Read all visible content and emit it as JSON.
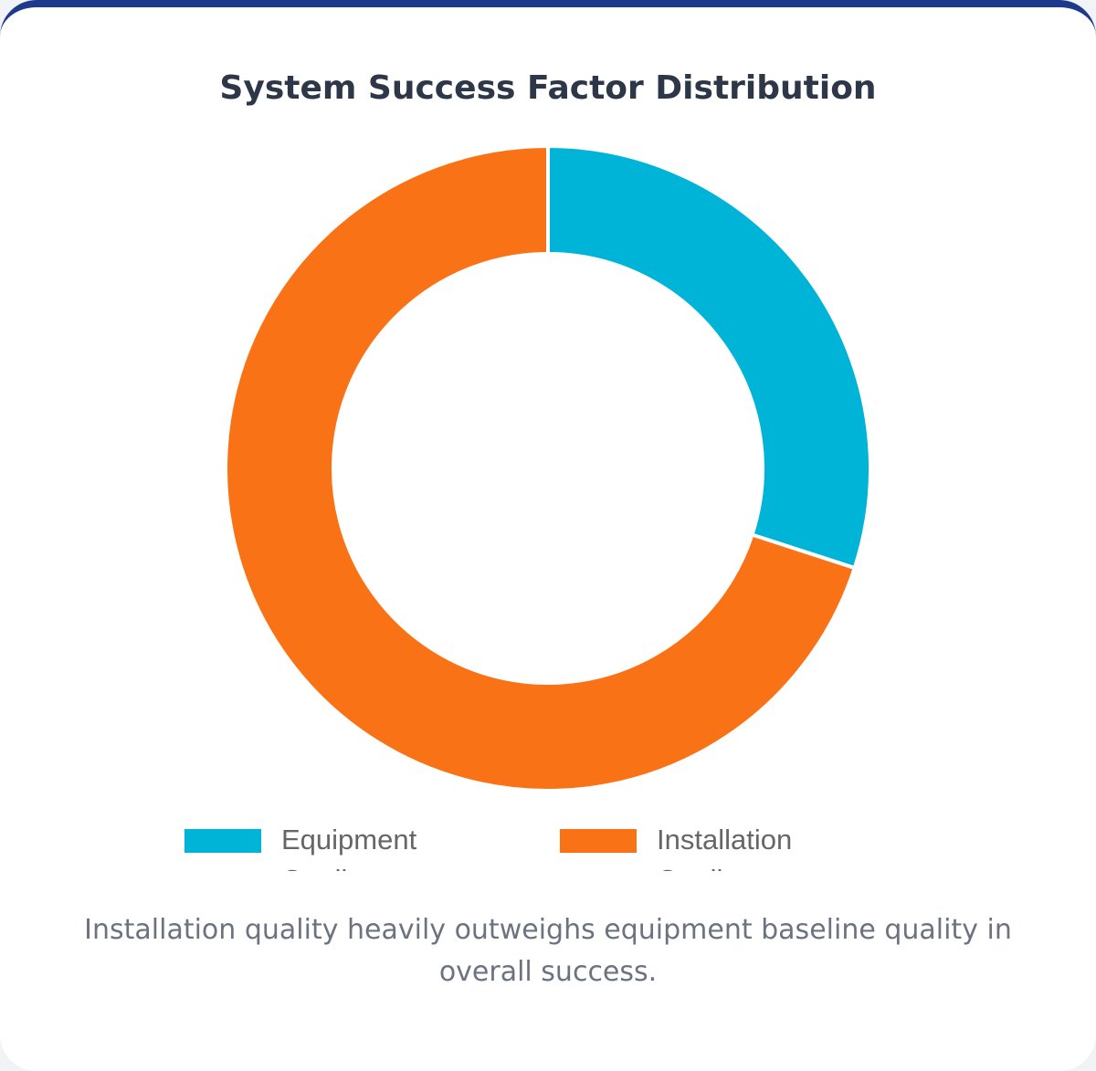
{
  "chart_data": {
    "type": "pie",
    "variant": "doughnut",
    "title": "System Success Factor Distribution",
    "categories": [
      "Equipment Quality",
      "Installation Quality"
    ],
    "values": [
      30,
      70
    ],
    "colors": [
      "#00b4d8",
      "#f97316"
    ],
    "legend_position": "bottom"
  },
  "caption": "Installation quality heavily outweighs equipment baseline quality in overall success.",
  "colors": {
    "card_border": "#1e3a8a"
  }
}
